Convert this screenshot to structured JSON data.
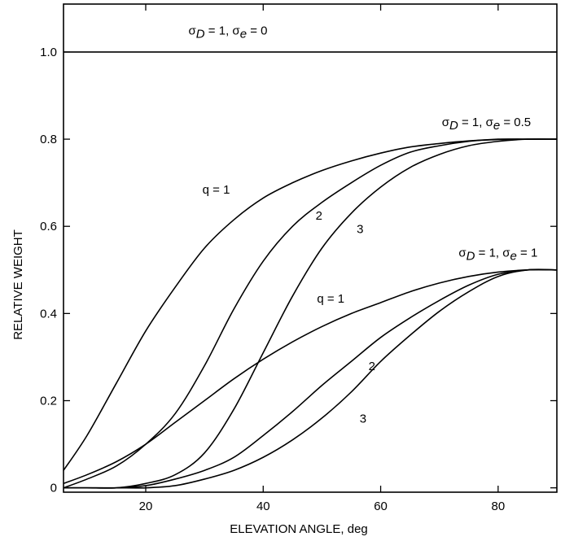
{
  "chart_data": {
    "type": "line",
    "title": "",
    "xlabel": "ELEVATION ANGLE, deg",
    "ylabel": "RELATIVE WEIGHT",
    "xlim": [
      6,
      90
    ],
    "ylim": [
      -0.01,
      1.11
    ],
    "xticks": [
      20,
      40,
      60,
      80
    ],
    "xtick_labels": [
      "20",
      "40",
      "60",
      "80"
    ],
    "yticks": [
      0,
      0.2,
      0.4,
      0.6,
      0.8,
      1.0
    ],
    "ytick_labels": [
      "0",
      "0.2",
      "0.4",
      "0.6",
      "0.8",
      "1.0"
    ],
    "grid": false,
    "series": [
      {
        "name": "",
        "group": "σD = 1, σe = 0",
        "q": "",
        "x": [
          6,
          90
        ],
        "y": [
          1.0,
          1.0
        ]
      },
      {
        "name": "",
        "group": "σD = 1, σe = 0.5",
        "q": "1",
        "x": [
          6,
          10,
          15,
          20,
          25,
          30,
          35,
          40,
          45,
          50,
          55,
          60,
          65,
          70,
          75,
          80,
          85,
          90
        ],
        "y": [
          0.04,
          0.12,
          0.24,
          0.36,
          0.46,
          0.55,
          0.615,
          0.665,
          0.7,
          0.728,
          0.75,
          0.768,
          0.782,
          0.79,
          0.796,
          0.799,
          0.8,
          0.8
        ]
      },
      {
        "name": "",
        "group": "σD = 1, σe = 0.5",
        "q": "2",
        "x": [
          6,
          10,
          15,
          20,
          25,
          30,
          35,
          40,
          45,
          50,
          55,
          60,
          65,
          70,
          75,
          80,
          85,
          90
        ],
        "y": [
          0.0,
          0.02,
          0.05,
          0.1,
          0.17,
          0.28,
          0.41,
          0.52,
          0.6,
          0.655,
          0.7,
          0.74,
          0.77,
          0.785,
          0.795,
          0.8,
          0.8,
          0.8
        ]
      },
      {
        "name": "",
        "group": "σD = 1, σe = 0.5",
        "q": "3",
        "x": [
          6,
          10,
          15,
          20,
          25,
          30,
          35,
          40,
          45,
          50,
          55,
          60,
          65,
          70,
          75,
          80,
          85,
          90
        ],
        "y": [
          0.0,
          0.0,
          0.0,
          0.01,
          0.03,
          0.08,
          0.18,
          0.31,
          0.44,
          0.55,
          0.63,
          0.69,
          0.735,
          0.765,
          0.785,
          0.795,
          0.8,
          0.8
        ]
      },
      {
        "name": "",
        "group": "σD = 1, σe = 1",
        "q": "1",
        "x": [
          6,
          10,
          15,
          20,
          25,
          30,
          35,
          40,
          45,
          50,
          55,
          60,
          65,
          70,
          75,
          80,
          85,
          90
        ],
        "y": [
          0.01,
          0.03,
          0.06,
          0.1,
          0.15,
          0.2,
          0.25,
          0.295,
          0.335,
          0.37,
          0.4,
          0.425,
          0.45,
          0.47,
          0.485,
          0.495,
          0.5,
          0.5
        ]
      },
      {
        "name": "",
        "group": "σD = 1, σe = 1",
        "q": "2",
        "x": [
          6,
          10,
          15,
          20,
          25,
          30,
          35,
          40,
          45,
          50,
          55,
          60,
          65,
          70,
          75,
          80,
          85,
          90
        ],
        "y": [
          0.0,
          0.0,
          0.0,
          0.005,
          0.02,
          0.04,
          0.07,
          0.12,
          0.175,
          0.235,
          0.29,
          0.345,
          0.39,
          0.43,
          0.465,
          0.49,
          0.5,
          0.5
        ]
      },
      {
        "name": "",
        "group": "σD = 1, σe = 1",
        "q": "3",
        "x": [
          6,
          10,
          15,
          20,
          25,
          30,
          35,
          40,
          45,
          50,
          55,
          60,
          65,
          70,
          75,
          80,
          85,
          90
        ],
        "y": [
          0.0,
          0.0,
          0.0,
          0.0,
          0.005,
          0.02,
          0.04,
          0.07,
          0.11,
          0.16,
          0.22,
          0.29,
          0.35,
          0.405,
          0.45,
          0.485,
          0.5,
          0.5
        ]
      }
    ],
    "annotations": [
      {
        "key": "top_label",
        "text": "",
        "parts": [
          "σ",
          "D",
          " = 1, ",
          "σ",
          "e",
          " = 0"
        ],
        "x": 34,
        "y": 1.04
      },
      {
        "key": "mid_label",
        "parts": [
          "σ",
          "D",
          " = 1, ",
          "σ",
          "e",
          " = 0.5"
        ],
        "x": 78,
        "y": 0.83
      },
      {
        "key": "low_label",
        "parts": [
          "σ",
          "D",
          " = 1, ",
          "σ",
          "e",
          " = 1"
        ],
        "x": 80,
        "y": 0.53
      },
      {
        "key": "upper_q1",
        "text": "q = 1",
        "x": 32,
        "y": 0.675
      },
      {
        "key": "upper_q2",
        "text": "2",
        "x": 49.5,
        "y": 0.615
      },
      {
        "key": "upper_q3",
        "text": "3",
        "x": 56.5,
        "y": 0.585
      },
      {
        "key": "lower_q1",
        "text": "q = 1",
        "x": 51.5,
        "y": 0.425
      },
      {
        "key": "lower_q2",
        "text": "2",
        "x": 58.5,
        "y": 0.27
      },
      {
        "key": "lower_q3",
        "text": "3",
        "x": 57,
        "y": 0.15
      }
    ]
  }
}
